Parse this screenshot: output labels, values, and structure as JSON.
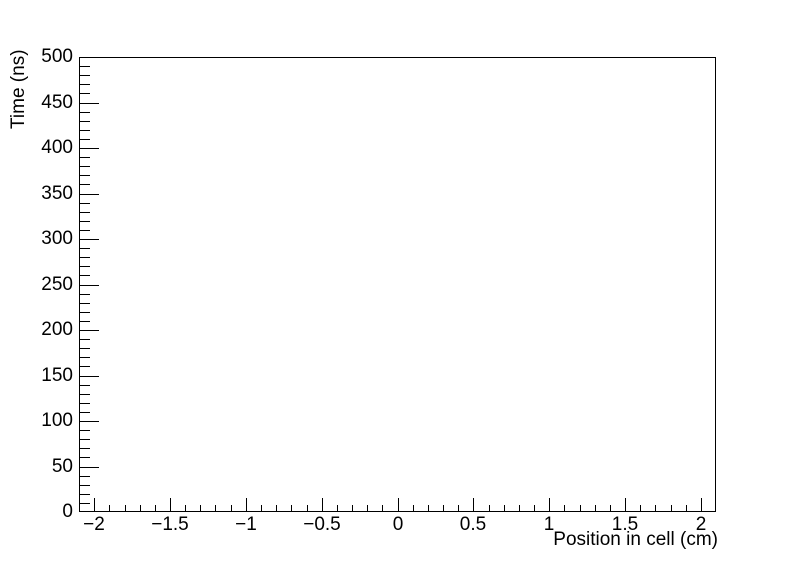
{
  "chart_data": {
    "type": "scatter",
    "title": "",
    "xlabel": "Position in cell (cm)",
    "ylabel": "Time (ns)",
    "xlim": [
      -2.1,
      2.1
    ],
    "ylim": [
      0,
      500
    ],
    "grid": false,
    "legend": false,
    "series": [],
    "frame_color": "#000000",
    "background_color": "#ffffff",
    "text_color": "#000000",
    "x_axis": {
      "min": -2.1,
      "max": 2.1,
      "major_step": 0.5,
      "minor_step": 0.1,
      "ticks": [
        {
          "v": -2,
          "label": "−2"
        },
        {
          "v": -1.5,
          "label": "−1.5"
        },
        {
          "v": -1,
          "label": "−1"
        },
        {
          "v": -0.5,
          "label": "−0.5"
        },
        {
          "v": 0,
          "label": "0"
        },
        {
          "v": 0.5,
          "label": "0.5"
        },
        {
          "v": 1,
          "label": "1"
        },
        {
          "v": 1.5,
          "label": "1.5"
        },
        {
          "v": 2,
          "label": "2"
        }
      ]
    },
    "y_axis": {
      "min": 0,
      "max": 500,
      "major_step": 50,
      "minor_step": 10,
      "ticks": [
        {
          "v": 0,
          "label": "0"
        },
        {
          "v": 50,
          "label": "50"
        },
        {
          "v": 100,
          "label": "100"
        },
        {
          "v": 150,
          "label": "150"
        },
        {
          "v": 200,
          "label": "200"
        },
        {
          "v": 250,
          "label": "250"
        },
        {
          "v": 300,
          "label": "300"
        },
        {
          "v": 350,
          "label": "350"
        },
        {
          "v": 400,
          "label": "400"
        },
        {
          "v": 450,
          "label": "450"
        },
        {
          "v": 500,
          "label": "500"
        }
      ]
    }
  }
}
